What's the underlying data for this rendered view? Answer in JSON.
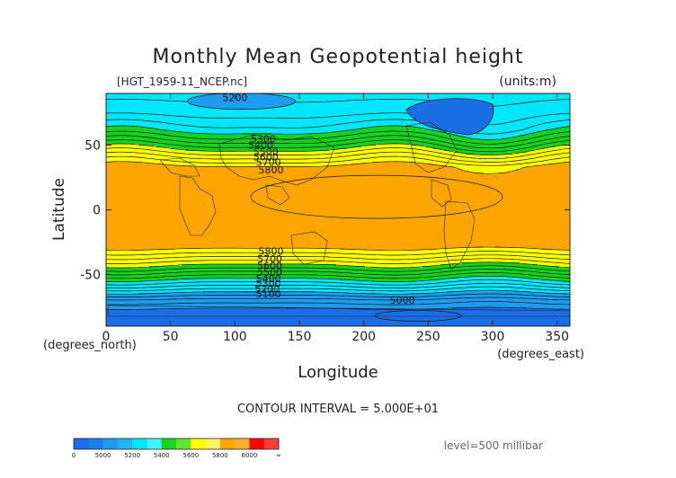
{
  "chart_data": {
    "type": "heatmap",
    "title": "Monthly Mean Geopotential height",
    "file_label": "[HGT_1959-11_NCEP.nc]",
    "units_label": "(units:m)",
    "xlabel": "Longitude",
    "ylabel": "Latitude",
    "x_unit_label": "(degrees_east)",
    "y_unit_label": "(degrees_north)",
    "xlim": [
      0,
      360
    ],
    "ylim": [
      -90,
      90
    ],
    "x_ticks": [
      0,
      50,
      100,
      150,
      200,
      250,
      300,
      350
    ],
    "y_ticks": [
      50,
      0,
      -50
    ],
    "contour_interval_text": "CONTOUR INTERVAL = 5.000E+01",
    "level_text": "level=500 millibar",
    "color_levels": [
      {
        "min": 0,
        "max": 5000,
        "color": "#1a6ee6"
      },
      {
        "min": 5000,
        "max": 5200,
        "color": "#1e9cf0"
      },
      {
        "min": 5200,
        "max": 5400,
        "color": "#00e6ff"
      },
      {
        "min": 5400,
        "max": 5600,
        "color": "#14d21e"
      },
      {
        "min": 5600,
        "max": 5800,
        "color": "#ffff00"
      },
      {
        "min": 5800,
        "max": 6000,
        "color": "#ffa500"
      },
      {
        "min": 6000,
        "max": 9999,
        "color": "#ff0000"
      }
    ],
    "colorbar_colors": [
      "#1a6ee6",
      "#1a7fe8",
      "#1e9cf0",
      "#20b4f6",
      "#00e6ff",
      "#3ff0ff",
      "#1bd21e",
      "#5ee62a",
      "#ffff00",
      "#fff460",
      "#ffa500",
      "#ffb030",
      "#ff0000",
      "#ff3c3c"
    ],
    "colorbar_labels": [
      "0",
      "5000",
      "5200",
      "5400",
      "5600",
      "5800",
      "6000",
      "∞"
    ],
    "zonal_profile": [
      {
        "lat": 90,
        "height": 5230
      },
      {
        "lat": 75,
        "height": 5280
      },
      {
        "lat": 62,
        "height": 5380
      },
      {
        "lat": 55,
        "height": 5470
      },
      {
        "lat": 48,
        "height": 5580
      },
      {
        "lat": 42,
        "height": 5680
      },
      {
        "lat": 38,
        "height": 5740
      },
      {
        "lat": 33,
        "height": 5820
      },
      {
        "lat": 15,
        "height": 5860
      },
      {
        "lat": 0,
        "height": 5860
      },
      {
        "lat": -15,
        "height": 5860
      },
      {
        "lat": -28,
        "height": 5830
      },
      {
        "lat": -33,
        "height": 5760
      },
      {
        "lat": -38,
        "height": 5680
      },
      {
        "lat": -44,
        "height": 5580
      },
      {
        "lat": -50,
        "height": 5470
      },
      {
        "lat": -57,
        "height": 5340
      },
      {
        "lat": -64,
        "height": 5200
      },
      {
        "lat": -70,
        "height": 5080
      },
      {
        "lat": -78,
        "height": 4980
      },
      {
        "lat": -90,
        "height": 4950
      }
    ],
    "contour_labels": [
      {
        "text": "5200",
        "lon": 100,
        "lat": 87
      },
      {
        "text": "5300",
        "lon": 122,
        "lat": 55
      },
      {
        "text": "5400",
        "lon": 120,
        "lat": 50
      },
      {
        "text": "5500",
        "lon": 124,
        "lat": 45
      },
      {
        "text": "5600",
        "lon": 124,
        "lat": 41
      },
      {
        "text": "5700",
        "lon": 126,
        "lat": 37
      },
      {
        "text": "5800",
        "lon": 128,
        "lat": 31
      },
      {
        "text": "5800",
        "lon": 128,
        "lat": -32
      },
      {
        "text": "5700",
        "lon": 127,
        "lat": -38
      },
      {
        "text": "5600",
        "lon": 127,
        "lat": -43
      },
      {
        "text": "5500",
        "lon": 127,
        "lat": -48
      },
      {
        "text": "5400",
        "lon": 126,
        "lat": -53
      },
      {
        "text": "5300",
        "lon": 126,
        "lat": -57
      },
      {
        "text": "5200",
        "lon": 125,
        "lat": -61
      },
      {
        "text": "5100",
        "lon": 126,
        "lat": -65
      },
      {
        "text": "5000",
        "lon": 230,
        "lat": -70
      }
    ]
  }
}
